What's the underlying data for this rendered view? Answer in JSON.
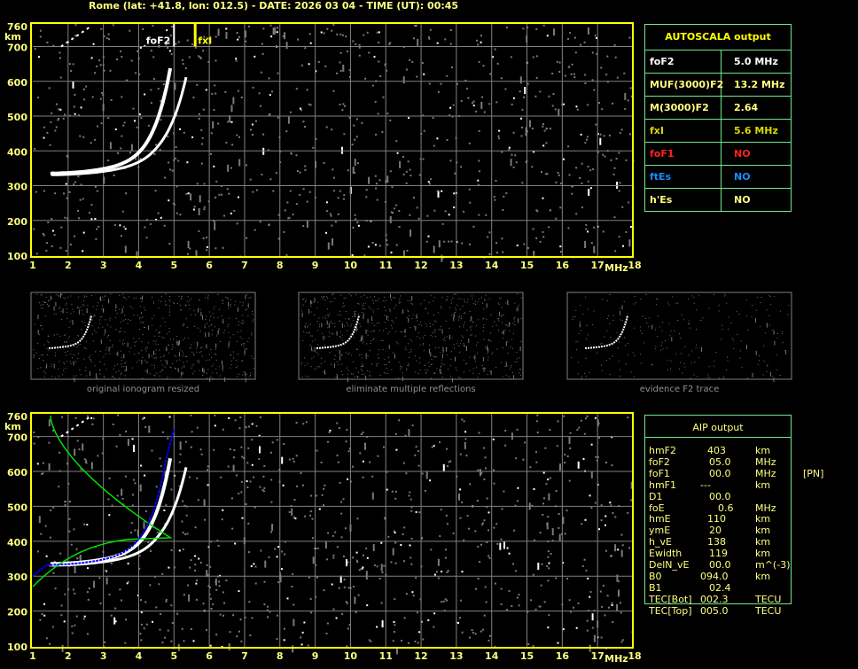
{
  "header": {
    "title": "Rome (lat: +41.8, lon: 012.5) - DATE: 2026 03 04 - TIME (UT): 00:45"
  },
  "axes": {
    "y_unit": "km",
    "x_unit": "MHz",
    "y_ticks": [
      "760",
      "700",
      "600",
      "500",
      "400",
      "300",
      "200",
      "100"
    ],
    "x_ticks": [
      "1",
      "2",
      "3",
      "4",
      "5",
      "6",
      "7",
      "8",
      "9",
      "10",
      "11",
      "12",
      "13",
      "14",
      "15",
      "16",
      "17",
      "18"
    ]
  },
  "markers": {
    "foF2_label": "foF2",
    "foF2_value": 5.0,
    "fxI_label": "fxI",
    "fxI_value": 5.6
  },
  "autoscala": {
    "title": "AUTOSCALA output",
    "rows": [
      {
        "key": "foF2",
        "value": "5.0 MHz",
        "color": "#ffffff"
      },
      {
        "key": "MUF(3000)F2",
        "value": "13.2 MHz",
        "color": "#ffff80"
      },
      {
        "key": "M(3000)F2",
        "value": "2.64",
        "color": "#ffff80"
      },
      {
        "key": "fxI",
        "value": "5.6 MHz",
        "color": "#d8d800"
      },
      {
        "key": "foF1",
        "value": "NO",
        "color": "#ff2020"
      },
      {
        "key": "ftEs",
        "value": "NO",
        "color": "#1a8cff"
      },
      {
        "key": "h'Es",
        "value": "NO",
        "color": "#ffff80"
      }
    ]
  },
  "thumbnails": [
    {
      "caption": "original ionogram resized"
    },
    {
      "caption": "eliminate multiple reflections"
    },
    {
      "caption": "evidence F2 trace"
    }
  ],
  "aip": {
    "title": "AIP output",
    "rows": [
      {
        "k": "hmF2",
        "v": "403",
        "u": "km",
        "x": ""
      },
      {
        "k": "foF2",
        "v": "05.0",
        "u": "MHz",
        "x": ""
      },
      {
        "k": "foF1",
        "v": "00.0",
        "u": "MHz",
        "x": "[PN]"
      },
      {
        "k": "hmF1",
        "v": "---",
        "u": "km",
        "x": ""
      },
      {
        "k": "D1",
        "v": "00.0",
        "u": "",
        "x": ""
      },
      {
        "k": "foE",
        "v": "0.6",
        "u": "MHz",
        "x": ""
      },
      {
        "k": "hmE",
        "v": "110",
        "u": "km",
        "x": ""
      },
      {
        "k": "ymE",
        "v": "20",
        "u": "km",
        "x": ""
      },
      {
        "k": "h_vE",
        "v": "138",
        "u": "km",
        "x": ""
      },
      {
        "k": "Ewidth",
        "v": "119",
        "u": "km",
        "x": ""
      },
      {
        "k": "DelN_vE",
        "v": "00.0",
        "u": "m^(-3)",
        "x": ""
      },
      {
        "k": "B0",
        "v": "094.0",
        "u": "km",
        "x": ""
      },
      {
        "k": "B1",
        "v": "02.4",
        "u": "",
        "x": ""
      },
      {
        "k": "TEC[Bot]",
        "v": "002.3",
        "u": "TECU",
        "x": ""
      },
      {
        "k": "TEC[Top]",
        "v": "005.0",
        "u": "TECU",
        "x": ""
      }
    ]
  },
  "colors": {
    "frame": "#ffff00",
    "grid": "#808080",
    "table_border": "#70e890",
    "profile": "#00e000",
    "trace_fit": "#0000ff"
  }
}
